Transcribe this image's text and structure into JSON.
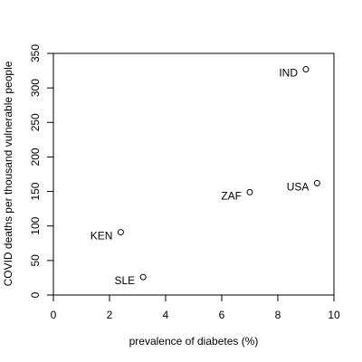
{
  "chart_data": {
    "type": "scatter",
    "title": "",
    "xlabel": "prevalence of diabetes (%)",
    "ylabel": "COVID deaths per thousand vulnerable people",
    "xlim": [
      0,
      10
    ],
    "ylim": [
      0,
      350
    ],
    "xticks": [
      0,
      2,
      4,
      6,
      8,
      10
    ],
    "yticks": [
      0,
      50,
      100,
      150,
      200,
      250,
      300,
      350
    ],
    "grid": false,
    "marker": "open-circle",
    "points": [
      {
        "label": "IND",
        "x": 9.0,
        "y": 327
      },
      {
        "label": "USA",
        "x": 9.4,
        "y": 162
      },
      {
        "label": "ZAF",
        "x": 7.0,
        "y": 149
      },
      {
        "label": "KEN",
        "x": 2.4,
        "y": 91
      },
      {
        "label": "SLE",
        "x": 3.2,
        "y": 26
      }
    ]
  }
}
